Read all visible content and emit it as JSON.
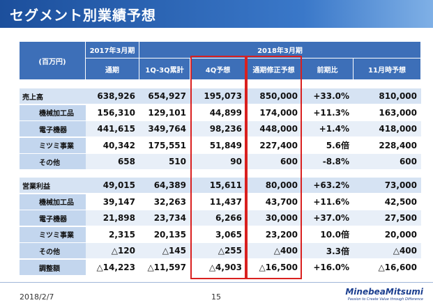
{
  "header": {
    "title": "セグメント別業績予想"
  },
  "table": {
    "unit": "(百万円)",
    "period_2017": "2017年3月期",
    "period_2018": "2018年3月期",
    "columns": [
      "通期",
      "1Q-3Q累計",
      "4Q予想",
      "通期修正予想",
      "前期比",
      "11月時予想"
    ],
    "groups": [
      {
        "rows": [
          [
            "売上高",
            "638,926",
            "654,927",
            "195,073",
            "850,000",
            "+33.0%",
            "810,000"
          ],
          [
            "機械加工品",
            "156,310",
            "129,101",
            "44,899",
            "174,000",
            "+11.3%",
            "163,000"
          ],
          [
            "電子機器",
            "441,615",
            "349,764",
            "98,236",
            "448,000",
            "+1.4%",
            "418,000"
          ],
          [
            "ミツミ事業",
            "40,342",
            "175,551",
            "51,849",
            "227,400",
            "5.6倍",
            "228,400"
          ],
          [
            "その他",
            "658",
            "510",
            "90",
            "600",
            "-8.8%",
            "600"
          ]
        ]
      },
      {
        "rows": [
          [
            "営業利益",
            "49,015",
            "64,389",
            "15,611",
            "80,000",
            "+63.2%",
            "73,000"
          ],
          [
            "機械加工品",
            "39,147",
            "32,263",
            "11,437",
            "43,700",
            "+11.6%",
            "42,500"
          ],
          [
            "電子機器",
            "21,898",
            "23,734",
            "6,266",
            "30,000",
            "+37.0%",
            "27,500"
          ],
          [
            "ミツミ事業",
            "2,315",
            "20,135",
            "3,065",
            "23,200",
            "10.0倍",
            "20,000"
          ],
          [
            "その他",
            "△120",
            "△145",
            "△255",
            "△400",
            "3.3倍",
            "△400"
          ],
          [
            "調整額",
            "△14,223",
            "△11,597",
            "△4,903",
            "△16,500",
            "+16.0%",
            "△16,600"
          ]
        ]
      }
    ]
  },
  "footer": {
    "date": "2018/2/7",
    "page": "15",
    "logo": "MinebeaMitsumi",
    "tagline": "Passion to Create Value through Difference"
  }
}
